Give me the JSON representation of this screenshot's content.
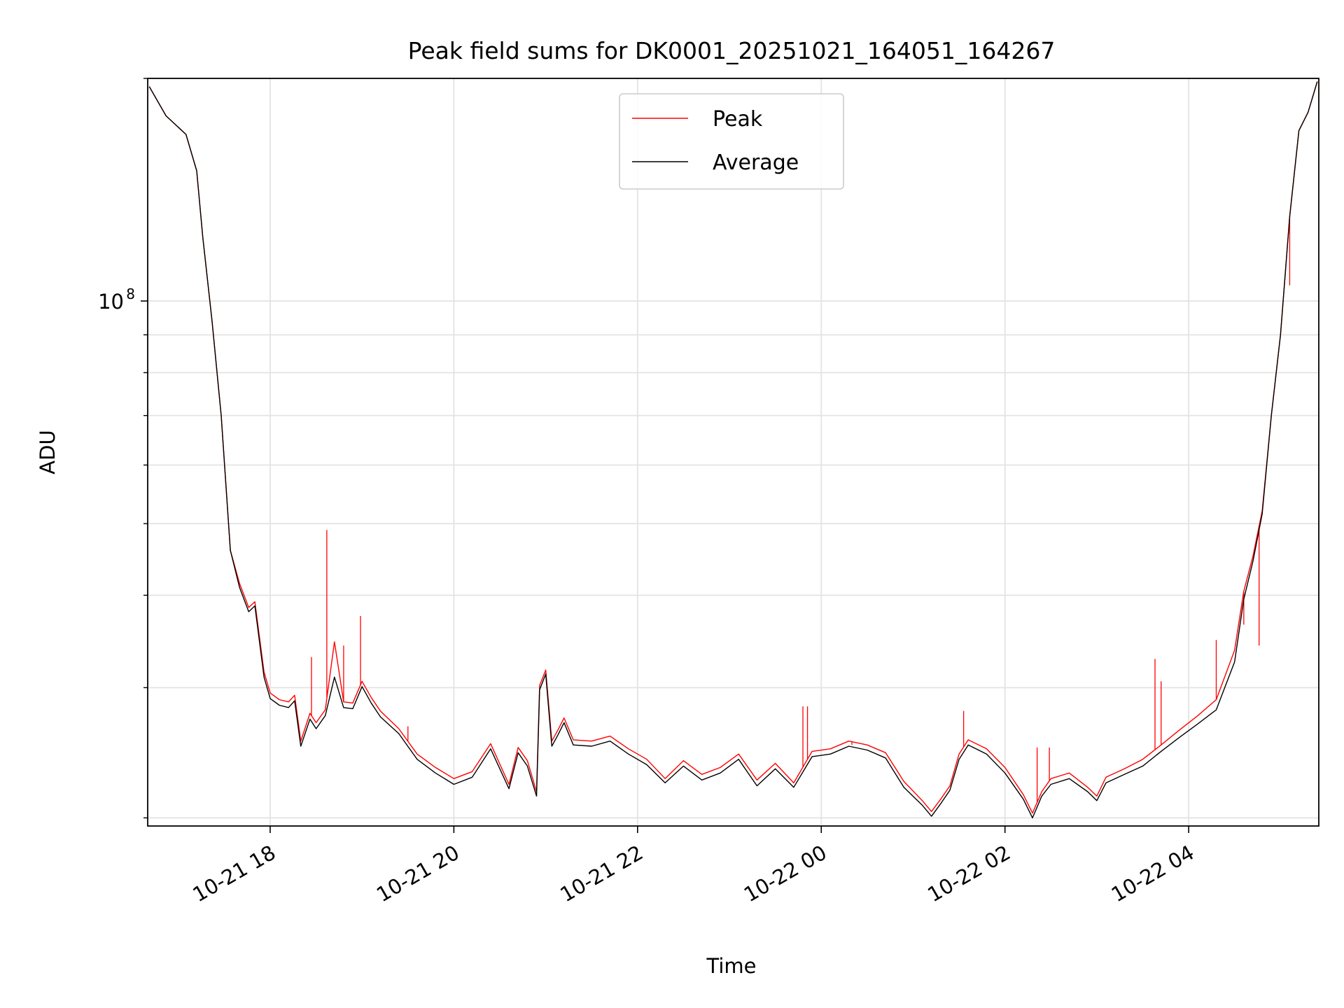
{
  "chart_data": {
    "type": "line",
    "title": "Peak field sums for DK0001_20251021_164051_164267",
    "xlabel": "Time",
    "ylabel": "ADU",
    "yscale": "log",
    "grid": true,
    "legend_position": "upper center",
    "xlim": [
      "2025-10-21 16:40",
      "2025-10-22 05:25"
    ],
    "ylim": [
      19500000,
      200000000
    ],
    "x_ticks": [
      {
        "value": "2025-10-21 18:00",
        "label": "10-21 18"
      },
      {
        "value": "2025-10-21 20:00",
        "label": "10-21 20"
      },
      {
        "value": "2025-10-21 22:00",
        "label": "10-21 22"
      },
      {
        "value": "2025-10-22 00:00",
        "label": "10-22 00"
      },
      {
        "value": "2025-10-22 02:00",
        "label": "10-22 02"
      },
      {
        "value": "2025-10-22 04:00",
        "label": "10-22 04"
      }
    ],
    "y_major_ticks": [
      {
        "value": 100000000,
        "label_base": "10",
        "label_exp": "8"
      }
    ],
    "y_minor_ticks": [
      20000000,
      30000000,
      40000000,
      50000000,
      60000000,
      70000000,
      80000000,
      90000000,
      200000000
    ],
    "series": [
      {
        "name": "Peak",
        "color": "#ff0000",
        "x": [
          "2025-10-21 16:41",
          "2025-10-21 16:52",
          "2025-10-21 17:05",
          "2025-10-21 17:12",
          "2025-10-21 17:16",
          "2025-10-21 17:22",
          "2025-10-21 17:28",
          "2025-10-21 17:34",
          "2025-10-21 17:40",
          "2025-10-21 17:46",
          "2025-10-21 17:50",
          "2025-10-21 17:56",
          "2025-10-21 18:00",
          "2025-10-21 18:06",
          "2025-10-21 18:12",
          "2025-10-21 18:16",
          "2025-10-21 18:20",
          "2025-10-21 18:26",
          "2025-10-21 18:30",
          "2025-10-21 18:36",
          "2025-10-21 18:42",
          "2025-10-21 18:48",
          "2025-10-21 18:54",
          "2025-10-21 19:00",
          "2025-10-21 19:06",
          "2025-10-21 19:12",
          "2025-10-21 19:24",
          "2025-10-21 19:36",
          "2025-10-21 19:48",
          "2025-10-21 20:00",
          "2025-10-21 20:12",
          "2025-10-21 20:24",
          "2025-10-21 20:36",
          "2025-10-21 20:42",
          "2025-10-21 20:48",
          "2025-10-21 20:54",
          "2025-10-21 20:56",
          "2025-10-21 21:00",
          "2025-10-21 21:04",
          "2025-10-21 21:08",
          "2025-10-21 21:12",
          "2025-10-21 21:18",
          "2025-10-21 21:30",
          "2025-10-21 21:42",
          "2025-10-21 21:54",
          "2025-10-21 22:06",
          "2025-10-21 22:18",
          "2025-10-21 22:30",
          "2025-10-21 22:42",
          "2025-10-21 22:54",
          "2025-10-21 23:06",
          "2025-10-21 23:18",
          "2025-10-21 23:30",
          "2025-10-21 23:42",
          "2025-10-21 23:54",
          "2025-10-22 00:06",
          "2025-10-22 00:18",
          "2025-10-22 00:30",
          "2025-10-22 00:42",
          "2025-10-22 00:54",
          "2025-10-22 01:06",
          "2025-10-22 01:12",
          "2025-10-22 01:18",
          "2025-10-22 01:24",
          "2025-10-22 01:30",
          "2025-10-22 01:36",
          "2025-10-22 01:48",
          "2025-10-22 02:00",
          "2025-10-22 02:12",
          "2025-10-22 02:18",
          "2025-10-22 02:24",
          "2025-10-22 02:30",
          "2025-10-22 02:42",
          "2025-10-22 02:54",
          "2025-10-22 03:00",
          "2025-10-22 03:06",
          "2025-10-22 03:18",
          "2025-10-22 03:30",
          "2025-10-22 03:42",
          "2025-10-22 03:54",
          "2025-10-22 04:06",
          "2025-10-22 04:18",
          "2025-10-22 04:30",
          "2025-10-22 04:36",
          "2025-10-22 04:42",
          "2025-10-22 04:48",
          "2025-10-22 04:54",
          "2025-10-22 05:00",
          "2025-10-22 05:06",
          "2025-10-22 05:12",
          "2025-10-22 05:18",
          "2025-10-22 05:24"
        ],
        "y": [
          195000000,
          178000000,
          168000000,
          150000000,
          122000000,
          94000000,
          70000000,
          46000000,
          41500000,
          38500000,
          39200000,
          31500000,
          29500000,
          28900000,
          28700000,
          29300000,
          25400000,
          27700000,
          26900000,
          28000000,
          34600000,
          28700000,
          28600000,
          30600000,
          29100000,
          27900000,
          26400000,
          24400000,
          23400000,
          22600000,
          23100000,
          25200000,
          22200000,
          24900000,
          23900000,
          21700000,
          30200000,
          31700000,
          25400000,
          26300000,
          27300000,
          25500000,
          25400000,
          25800000,
          24800000,
          24000000,
          22600000,
          23900000,
          22900000,
          23400000,
          24400000,
          22500000,
          23700000,
          22300000,
          24600000,
          24800000,
          25400000,
          25100000,
          24500000,
          22400000,
          21100000,
          20400000,
          21200000,
          22100000,
          24400000,
          25500000,
          24800000,
          23400000,
          21500000,
          20300000,
          21700000,
          22600000,
          23000000,
          22000000,
          21400000,
          22700000,
          23300000,
          24000000,
          25100000,
          26300000,
          27500000,
          28900000,
          33700000,
          40500000,
          45200000,
          52000000,
          70000000,
          90000000,
          130000000,
          170000000,
          180000000,
          198000000
        ]
      },
      {
        "name": "Average",
        "color": "#000000",
        "x": [
          "2025-10-21 16:41",
          "2025-10-21 16:52",
          "2025-10-21 17:05",
          "2025-10-21 17:12",
          "2025-10-21 17:16",
          "2025-10-21 17:22",
          "2025-10-21 17:28",
          "2025-10-21 17:34",
          "2025-10-21 17:40",
          "2025-10-21 17:46",
          "2025-10-21 17:50",
          "2025-10-21 17:56",
          "2025-10-21 18:00",
          "2025-10-21 18:06",
          "2025-10-21 18:12",
          "2025-10-21 18:16",
          "2025-10-21 18:20",
          "2025-10-21 18:26",
          "2025-10-21 18:30",
          "2025-10-21 18:36",
          "2025-10-21 18:42",
          "2025-10-21 18:48",
          "2025-10-21 18:54",
          "2025-10-21 19:00",
          "2025-10-21 19:06",
          "2025-10-21 19:12",
          "2025-10-21 19:24",
          "2025-10-21 19:36",
          "2025-10-21 19:48",
          "2025-10-21 20:00",
          "2025-10-21 20:12",
          "2025-10-21 20:24",
          "2025-10-21 20:36",
          "2025-10-21 20:42",
          "2025-10-21 20:48",
          "2025-10-21 20:54",
          "2025-10-21 20:56",
          "2025-10-21 21:00",
          "2025-10-21 21:04",
          "2025-10-21 21:08",
          "2025-10-21 21:12",
          "2025-10-21 21:18",
          "2025-10-21 21:30",
          "2025-10-21 21:42",
          "2025-10-21 21:54",
          "2025-10-21 22:06",
          "2025-10-21 22:18",
          "2025-10-21 22:30",
          "2025-10-21 22:42",
          "2025-10-21 22:54",
          "2025-10-21 23:06",
          "2025-10-21 23:18",
          "2025-10-21 23:30",
          "2025-10-21 23:42",
          "2025-10-21 23:54",
          "2025-10-22 00:06",
          "2025-10-22 00:18",
          "2025-10-22 00:30",
          "2025-10-22 00:42",
          "2025-10-22 00:54",
          "2025-10-22 01:06",
          "2025-10-22 01:12",
          "2025-10-22 01:18",
          "2025-10-22 01:24",
          "2025-10-22 01:30",
          "2025-10-22 01:36",
          "2025-10-22 01:48",
          "2025-10-22 02:00",
          "2025-10-22 02:12",
          "2025-10-22 02:18",
          "2025-10-22 02:24",
          "2025-10-22 02:30",
          "2025-10-22 02:42",
          "2025-10-22 02:54",
          "2025-10-22 03:00",
          "2025-10-22 03:06",
          "2025-10-22 03:18",
          "2025-10-22 03:30",
          "2025-10-22 03:42",
          "2025-10-22 03:54",
          "2025-10-22 04:06",
          "2025-10-22 04:18",
          "2025-10-22 04:30",
          "2025-10-22 04:36",
          "2025-10-22 04:42",
          "2025-10-22 04:48",
          "2025-10-22 04:54",
          "2025-10-22 05:00",
          "2025-10-22 05:06",
          "2025-10-22 05:12",
          "2025-10-22 05:18",
          "2025-10-22 05:24"
        ],
        "y": [
          195000000,
          178000000,
          168000000,
          150000000,
          122000000,
          94000000,
          70000000,
          46000000,
          41000000,
          38000000,
          38700000,
          31000000,
          29000000,
          28400000,
          28200000,
          28800000,
          25000000,
          27200000,
          26400000,
          27500000,
          31000000,
          28200000,
          28100000,
          30100000,
          28600000,
          27400000,
          26000000,
          24000000,
          23000000,
          22200000,
          22700000,
          24800000,
          21900000,
          24500000,
          23500000,
          21400000,
          29800000,
          31300000,
          25000000,
          25900000,
          26900000,
          25100000,
          25000000,
          25400000,
          24400000,
          23600000,
          22300000,
          23500000,
          22500000,
          23000000,
          24000000,
          22100000,
          23300000,
          22000000,
          24200000,
          24400000,
          25000000,
          24700000,
          24100000,
          22000000,
          20800000,
          20100000,
          20900000,
          21800000,
          24000000,
          25100000,
          24400000,
          23000000,
          21200000,
          20000000,
          21400000,
          22200000,
          22600000,
          21700000,
          21100000,
          22300000,
          22900000,
          23500000,
          24600000,
          25700000,
          26800000,
          28000000,
          32500000,
          39500000,
          44500000,
          51500000,
          70000000,
          90000000,
          130000000,
          170000000,
          180000000,
          198000000
        ]
      }
    ],
    "peak_spikes": [
      {
        "x": "2025-10-21 18:27",
        "y": 33000000
      },
      {
        "x": "2025-10-21 18:37",
        "y": 49000000
      },
      {
        "x": "2025-10-21 18:48",
        "y": 34200000
      },
      {
        "x": "2025-10-21 18:59",
        "y": 37500000
      },
      {
        "x": "2025-10-21 19:30",
        "y": 26600000
      },
      {
        "x": "2025-10-21 23:48",
        "y": 28300000
      },
      {
        "x": "2025-10-21 23:51",
        "y": 28300000
      },
      {
        "x": "2025-10-22 00:20",
        "y": 25100000
      },
      {
        "x": "2025-10-22 01:33",
        "y": 27900000
      },
      {
        "x": "2025-10-22 02:21",
        "y": 24900000
      },
      {
        "x": "2025-10-22 02:29",
        "y": 24900000
      },
      {
        "x": "2025-10-22 03:38",
        "y": 32800000
      },
      {
        "x": "2025-10-22 03:42",
        "y": 30600000
      },
      {
        "x": "2025-10-22 04:18",
        "y": 34800000
      },
      {
        "x": "2025-10-22 04:36",
        "y": 36500000
      },
      {
        "x": "2025-10-22 04:46",
        "y": 34200000
      },
      {
        "x": "2025-10-22 05:06",
        "y": 105000000
      }
    ]
  }
}
